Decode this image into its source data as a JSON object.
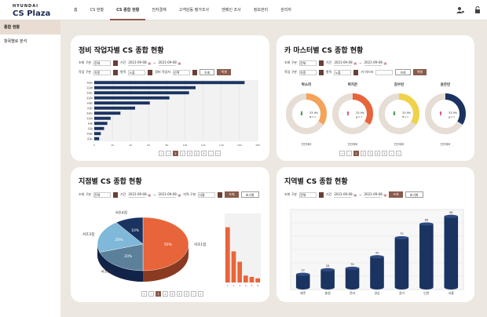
{
  "header": {
    "brand": "HYUNDAI",
    "app": "CS Plaza",
    "nav": [
      "홈",
      "CS 현황",
      "CS 종합 현황",
      "전자결재",
      "고객감동 평가조사",
      "엔메인 조사",
      "정보관리",
      "관리자"
    ],
    "active_nav": 2
  },
  "sidebar": {
    "items": [
      "종합 현황",
      "항목별로 분석"
    ],
    "active": 0
  },
  "colors": {
    "accent": "#8a5a4a",
    "navy": "#1a3360",
    "orange": "#e8643a"
  },
  "p1": {
    "title": "정비 작업자별 CS 종합 현황",
    "f_research": "조회 구분",
    "f_research_v": "전체",
    "f_period": "기간",
    "f_from": "2021-09-08",
    "f_to": "2021-09-08",
    "f_work": "작업 구분",
    "f_work_v": "차종",
    "f_item": "항목",
    "f_item_v": "노출",
    "f_worker": "정비 작업자",
    "f_worker_v": "선택",
    "search": "조회",
    "reset": "엑셀"
  },
  "p2": {
    "title": "카 마스터별 CS 종합 현황",
    "f_research": "조회 구분",
    "f_research_v": "전체",
    "f_period": "기간",
    "f_from": "2021-09-08",
    "f_to": "2021-09-08",
    "f_work": "작업 구분",
    "f_work_v": "차종",
    "f_item": "항목",
    "f_item_v": "노출",
    "f_master": "카 마스터",
    "search": "조회",
    "reset": "엑셀"
  },
  "p3": {
    "title": "지점별 CS 종합 현황",
    "f_research": "조회 구분",
    "f_research_v": "전체",
    "f_period": "기간",
    "f_from": "2021-09-08",
    "f_to": "2021-09-08",
    "f_region": "지역 구분",
    "f_region_v": "서울",
    "search": "조회",
    "reset": "초기화"
  },
  "p4": {
    "title": "지역별 CS 종합 현황",
    "f_research": "조회 구분",
    "f_research_v": "전체",
    "f_period": "기간",
    "f_from": "2021-09-08",
    "f_to": "2021-09-08",
    "search": "조회",
    "reset": "초기화"
  },
  "pager": [
    "«",
    "‹",
    "1",
    "2",
    "3",
    "4",
    "5",
    "›",
    "»"
  ],
  "chart_data": [
    {
      "type": "bar",
      "title": "정비 작업자별 CS 종합 현황",
      "orientation": "horizontal",
      "categories": [
        "홍길A",
        "홍길B",
        "홍길C",
        "홍길D",
        "홍길E",
        "홍길F",
        "홍길G",
        "홍길H",
        "홍길I",
        "홍길J",
        "홍길K",
        "홍길L"
      ],
      "values": [
        92,
        62,
        58,
        46,
        34,
        25,
        16,
        10,
        8,
        6,
        4,
        3
      ],
      "x_ticks": [
        "0",
        "20",
        "40",
        "60",
        "80",
        "100",
        "120",
        "140",
        "160",
        "180"
      ],
      "xlim": [
        0,
        100
      ]
    },
    {
      "type": "pie",
      "title": "카 마스터별 CS 종합 현황",
      "donuts": [
        {
          "name": "박소라",
          "value": 33.9,
          "change": "▼ 0.3",
          "trend": "down",
          "color": "#f5a35a",
          "sub": "전년대비"
        },
        {
          "name": "박지은",
          "value": 33.9,
          "change": "▲ 0.3",
          "trend": "up",
          "color": "#e8643a",
          "sub": "전년대비"
        },
        {
          "name": "김수빈",
          "value": 33.9,
          "change": "▼ 0.3",
          "trend": "down",
          "color": "#f0d24a",
          "sub": "전년대비"
        },
        {
          "name": "윤은빈",
          "value": 33.9,
          "change": "▲ 0.3",
          "trend": "up",
          "color": "#1a3360",
          "sub": "전년대비"
        }
      ]
    },
    {
      "type": "pie",
      "title": "지점별 CS 종합 현황",
      "categories": [
        "서초1점",
        "서초2점",
        "서초3점",
        "서초4점"
      ],
      "values": [
        50,
        20,
        20,
        10
      ],
      "labels": [
        "50%",
        "20%",
        "20%",
        "10%"
      ],
      "colors": [
        "#e8643a",
        "#5c7f9a",
        "#7fb8d8",
        "#1a3360"
      ]
    },
    {
      "type": "bar",
      "title": "지점별 막대",
      "categories": [
        "1",
        "2",
        "3",
        "4",
        "5",
        "6"
      ],
      "values": [
        80,
        45,
        30,
        10,
        8,
        6
      ]
    },
    {
      "type": "bar",
      "title": "지역별 CS 종합 현황",
      "categories": [
        "제주",
        "충청",
        "전라",
        "경상",
        "경기",
        "인천",
        "서울"
      ],
      "values": [
        22,
        28,
        30,
        45,
        70,
        88,
        98
      ],
      "labels": [
        "22",
        "28",
        "30",
        "45",
        "70",
        "88",
        "98"
      ]
    }
  ]
}
